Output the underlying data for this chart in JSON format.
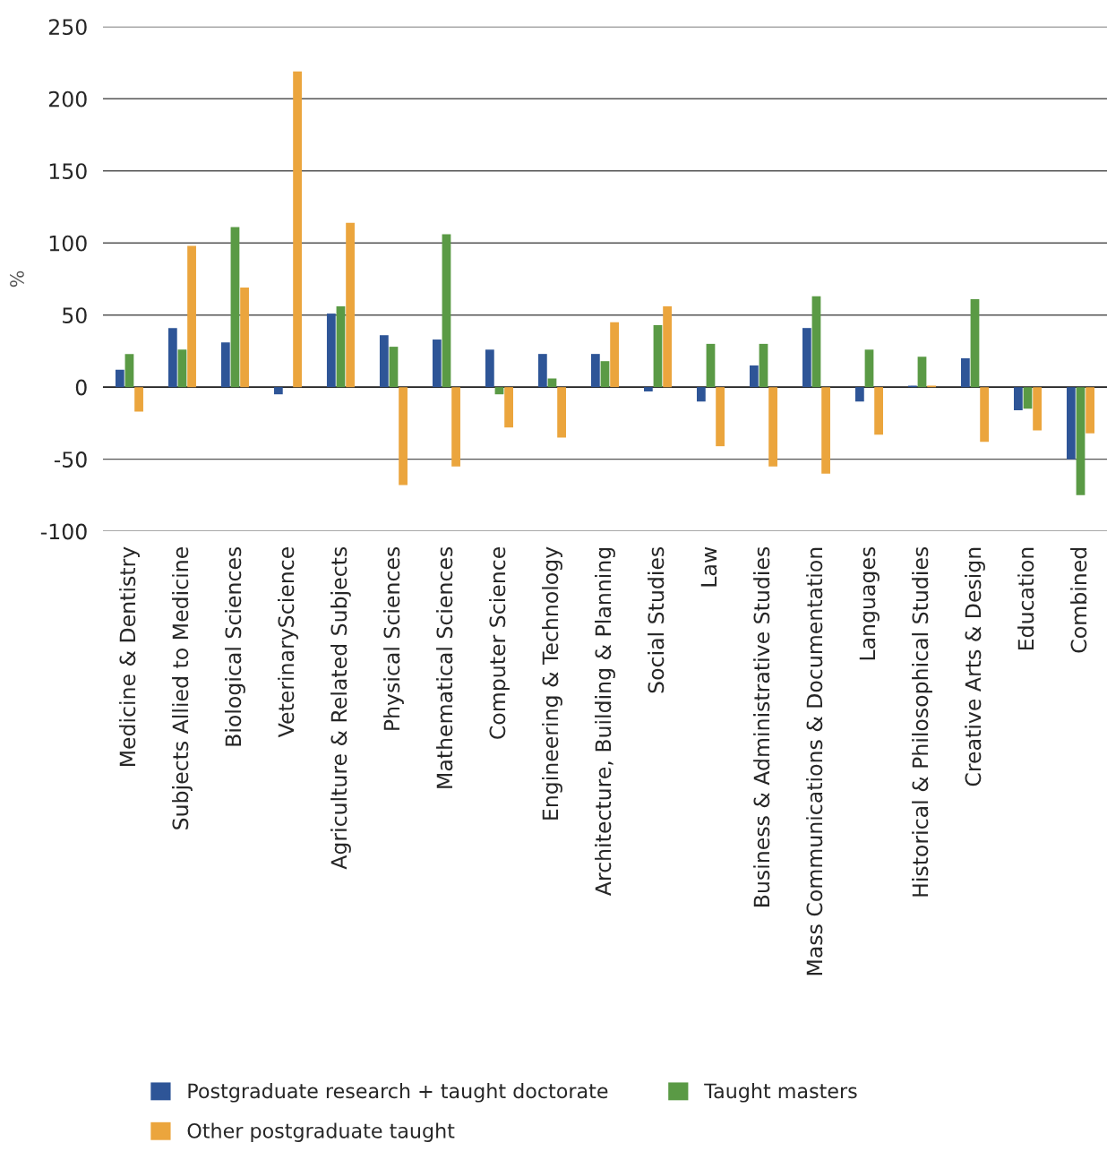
{
  "chart_data": {
    "type": "bar",
    "ylabel": "%",
    "categories": [
      "Medicine & Dentistry",
      "Subjects Allied to Medicine",
      "Biological Sciences",
      "VeterinaryScience",
      "Agriculture & Related Subjects",
      "Physical Sciences",
      "Mathematical Sciences",
      "Computer Science",
      "Engineering & Technology",
      "Architecture, Building & Planning",
      "Social Studies",
      "Law",
      "Business & Administrative Studies",
      "Mass Communications & Documentation",
      "Languages",
      "Historical & Philosophical Studies",
      "Creative Arts & Design",
      "Education",
      "Combined"
    ],
    "series": [
      {
        "name": "Postgraduate research + taught doctorate",
        "color": "#2e5597",
        "values": [
          12,
          41,
          31,
          -5,
          51,
          36,
          33,
          26,
          23,
          23,
          -3,
          -10,
          15,
          41,
          -10,
          1,
          20,
          -16,
          -50
        ]
      },
      {
        "name": "Taught masters",
        "color": "#5a9a45",
        "values": [
          23,
          26,
          111,
          null,
          56,
          28,
          106,
          -5,
          6,
          18,
          43,
          30,
          30,
          63,
          26,
          21,
          61,
          -15,
          -75
        ]
      },
      {
        "name": "Other postgraduate taught",
        "color": "#eba53d",
        "values": [
          -17,
          98,
          69,
          219,
          114,
          -68,
          -55,
          -28,
          -35,
          45,
          56,
          -41,
          -55,
          -60,
          -33,
          1,
          -38,
          -30,
          -32
        ]
      }
    ],
    "ylim": [
      -100,
      250
    ],
    "yticks": [
      -100,
      -50,
      0,
      50,
      100,
      150,
      200,
      250
    ],
    "grid": "y",
    "legend": "bottom"
  }
}
